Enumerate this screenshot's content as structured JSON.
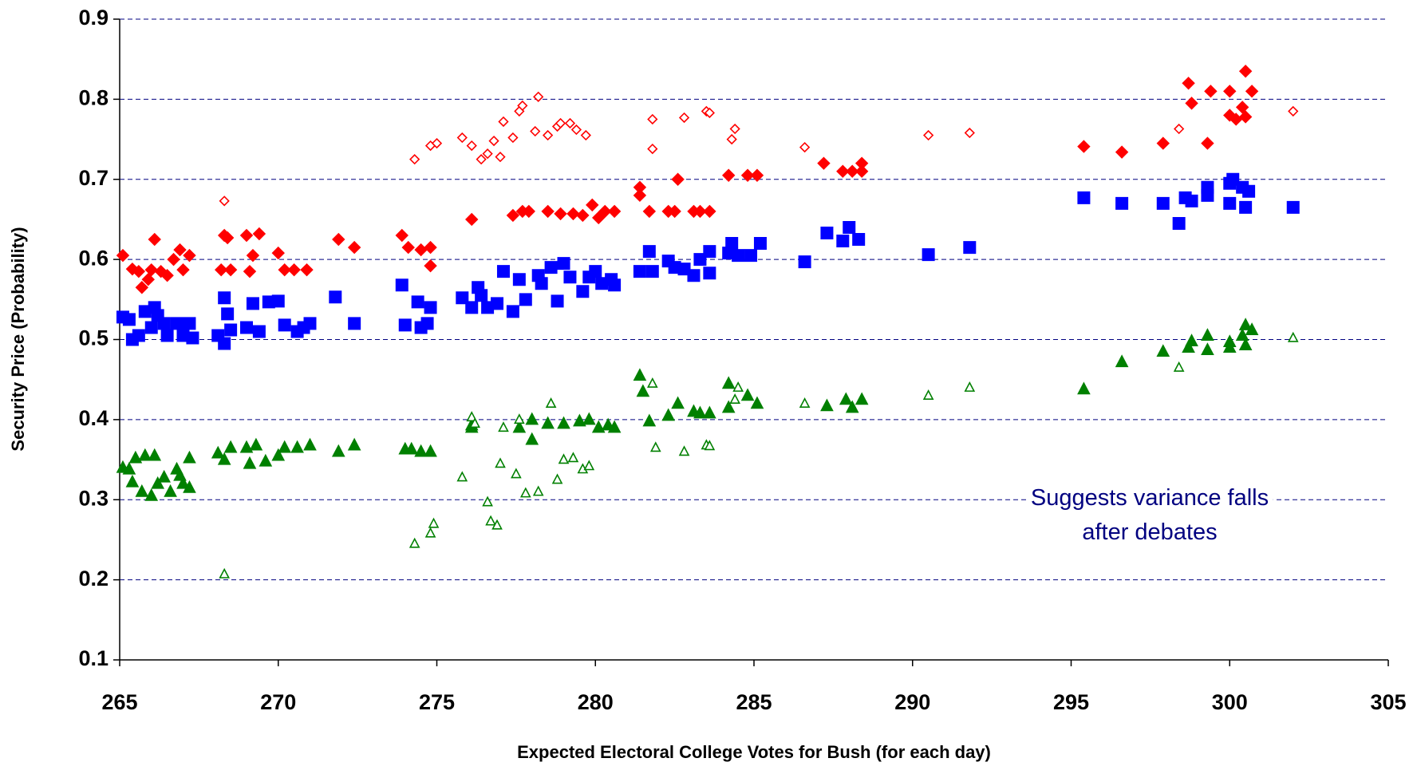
{
  "chart_data": {
    "type": "scatter",
    "x_label": "Expected Electoral College Votes for Bush (for each day)",
    "y_label": "Security Price (Probability)",
    "annotation": [
      "Suggests variance falls",
      "after debates"
    ],
    "xlim": [
      265,
      305
    ],
    "xticks": [
      265,
      270,
      275,
      280,
      285,
      290,
      295,
      300,
      305
    ],
    "ylim": [
      0.1,
      0.9
    ],
    "yticks": [
      0.1,
      0.2,
      0.3,
      0.4,
      0.5,
      0.6,
      0.7,
      0.8,
      0.9
    ],
    "grid": true,
    "series": [
      {
        "color": "#ff0000",
        "marker": "diamond",
        "filled": true,
        "x": [
          265.1,
          265.4,
          265.6,
          265.7,
          265.9,
          266.0,
          266.1,
          266.3,
          266.5,
          266.7,
          266.9,
          267.0,
          267.2,
          268.2,
          268.3,
          268.4,
          268.5,
          269.0,
          269.2,
          269.1,
          269.4,
          270.0,
          270.2,
          270.5,
          270.9,
          271.9,
          272.4,
          273.9,
          274.1,
          274.5,
          274.8,
          274.8,
          276.1,
          277.4,
          277.7,
          277.9,
          278.5,
          278.9,
          279.3,
          279.6,
          279.9,
          280.1,
          280.3,
          280.6,
          281.4,
          281.4,
          281.7,
          282.3,
          282.5,
          282.6,
          283.1,
          283.3,
          283.6,
          284.2,
          284.8,
          285.1,
          287.2,
          287.8,
          288.1,
          288.4,
          288.4,
          295.4,
          296.6,
          297.9,
          298.7,
          298.8,
          299.3,
          299.4,
          300.0,
          300.0,
          300.2,
          300.4,
          300.5,
          300.5,
          300.7
        ],
        "values": [
          0.605,
          0.588,
          0.585,
          0.565,
          0.575,
          0.587,
          0.625,
          0.585,
          0.58,
          0.6,
          0.612,
          0.587,
          0.605,
          0.587,
          0.63,
          0.627,
          0.587,
          0.63,
          0.605,
          0.585,
          0.632,
          0.608,
          0.587,
          0.587,
          0.587,
          0.625,
          0.615,
          0.63,
          0.615,
          0.612,
          0.615,
          0.592,
          0.65,
          0.655,
          0.66,
          0.66,
          0.66,
          0.657,
          0.657,
          0.655,
          0.668,
          0.652,
          0.66,
          0.66,
          0.69,
          0.68,
          0.66,
          0.66,
          0.66,
          0.7,
          0.66,
          0.66,
          0.66,
          0.705,
          0.705,
          0.705,
          0.72,
          0.71,
          0.71,
          0.72,
          0.71,
          0.741,
          0.734,
          0.745,
          0.82,
          0.795,
          0.745,
          0.81,
          0.81,
          0.78,
          0.775,
          0.79,
          0.835,
          0.778,
          0.81
        ]
      },
      {
        "color": "#ff0000",
        "marker": "diamond",
        "filled": false,
        "x": [
          268.3,
          274.3,
          274.8,
          275.0,
          275.8,
          276.1,
          276.4,
          276.6,
          276.8,
          277.0,
          277.1,
          277.4,
          277.6,
          277.7,
          278.1,
          278.2,
          278.5,
          278.8,
          278.9,
          279.2,
          279.4,
          279.7,
          281.8,
          281.8,
          282.8,
          283.5,
          283.6,
          284.3,
          284.4,
          286.6,
          290.5,
          291.8,
          298.4,
          302.0
        ],
        "values": [
          0.673,
          0.725,
          0.742,
          0.745,
          0.752,
          0.742,
          0.725,
          0.732,
          0.748,
          0.728,
          0.772,
          0.752,
          0.785,
          0.792,
          0.76,
          0.803,
          0.755,
          0.766,
          0.77,
          0.77,
          0.762,
          0.755,
          0.775,
          0.738,
          0.777,
          0.785,
          0.783,
          0.75,
          0.763,
          0.74,
          0.755,
          0.758,
          0.763,
          0.785
        ]
      },
      {
        "color": "#0000ff",
        "marker": "square",
        "filled": true,
        "x": [
          265.1,
          265.3,
          265.4,
          265.6,
          265.8,
          266.0,
          266.1,
          266.2,
          266.4,
          266.5,
          266.8,
          267.0,
          267.2,
          267.3,
          268.1,
          268.3,
          268.3,
          268.4,
          268.5,
          269.0,
          269.2,
          269.4,
          269.7,
          270.0,
          270.2,
          270.6,
          270.8,
          271.0,
          271.8,
          272.4,
          273.9,
          274.0,
          274.4,
          274.5,
          274.7,
          274.8,
          275.8,
          276.1,
          276.3,
          276.4,
          276.6,
          276.9,
          277.1,
          277.4,
          277.6,
          277.8,
          278.2,
          278.3,
          278.6,
          278.8,
          279.0,
          279.2,
          279.6,
          279.8,
          280.0,
          280.2,
          280.5,
          280.6,
          281.4,
          281.7,
          281.8,
          282.3,
          282.5,
          282.8,
          283.1,
          283.3,
          283.6,
          283.6,
          284.2,
          284.3,
          284.5,
          284.9,
          285.2,
          286.6,
          287.3,
          287.8,
          288.0,
          288.3,
          290.5,
          291.8,
          295.4,
          296.6,
          297.9,
          298.4,
          298.6,
          298.8,
          299.3,
          299.3,
          300.0,
          300.0,
          300.1,
          300.4,
          300.5,
          300.6,
          302.0
        ],
        "values": [
          0.528,
          0.525,
          0.5,
          0.505,
          0.535,
          0.515,
          0.54,
          0.53,
          0.52,
          0.505,
          0.52,
          0.505,
          0.52,
          0.502,
          0.505,
          0.552,
          0.495,
          0.532,
          0.512,
          0.515,
          0.545,
          0.51,
          0.547,
          0.548,
          0.518,
          0.51,
          0.515,
          0.52,
          0.553,
          0.52,
          0.568,
          0.518,
          0.547,
          0.515,
          0.52,
          0.54,
          0.552,
          0.54,
          0.565,
          0.555,
          0.54,
          0.545,
          0.585,
          0.535,
          0.575,
          0.55,
          0.58,
          0.57,
          0.59,
          0.548,
          0.595,
          0.578,
          0.56,
          0.578,
          0.585,
          0.57,
          0.575,
          0.568,
          0.585,
          0.61,
          0.585,
          0.598,
          0.59,
          0.588,
          0.58,
          0.6,
          0.61,
          0.583,
          0.608,
          0.62,
          0.605,
          0.605,
          0.62,
          0.597,
          0.633,
          0.623,
          0.64,
          0.625,
          0.606,
          0.615,
          0.677,
          0.67,
          0.67,
          0.645,
          0.677,
          0.673,
          0.69,
          0.68,
          0.67,
          0.695,
          0.7,
          0.69,
          0.665,
          0.685,
          0.665
        ]
      },
      {
        "color": "#008000",
        "marker": "triangle",
        "filled": true,
        "x": [
          265.1,
          265.3,
          265.4,
          265.5,
          265.7,
          265.8,
          266.0,
          266.1,
          266.2,
          266.4,
          266.6,
          266.8,
          266.9,
          267.0,
          267.2,
          267.2,
          268.1,
          268.3,
          268.5,
          269.0,
          269.1,
          269.3,
          269.6,
          270.0,
          270.2,
          270.6,
          271.0,
          271.9,
          272.4,
          274.0,
          274.2,
          274.5,
          274.8,
          276.1,
          276.1,
          277.6,
          278.0,
          278.0,
          278.5,
          279.0,
          279.5,
          279.8,
          280.1,
          280.4,
          280.6,
          281.4,
          281.5,
          281.7,
          282.3,
          282.6,
          283.1,
          283.3,
          283.6,
          284.2,
          284.2,
          284.8,
          285.1,
          287.3,
          287.9,
          288.1,
          288.4,
          295.4,
          296.6,
          297.9,
          298.7,
          298.8,
          299.3,
          299.3,
          300.0,
          300.0,
          300.4,
          300.5,
          300.5,
          300.7
        ],
        "values": [
          0.34,
          0.338,
          0.322,
          0.352,
          0.31,
          0.355,
          0.305,
          0.355,
          0.32,
          0.328,
          0.31,
          0.338,
          0.33,
          0.32,
          0.315,
          0.352,
          0.358,
          0.35,
          0.365,
          0.365,
          0.345,
          0.368,
          0.348,
          0.355,
          0.365,
          0.365,
          0.368,
          0.36,
          0.368,
          0.363,
          0.363,
          0.36,
          0.36,
          0.39,
          0.393,
          0.39,
          0.4,
          0.375,
          0.395,
          0.395,
          0.398,
          0.4,
          0.39,
          0.393,
          0.39,
          0.455,
          0.435,
          0.398,
          0.405,
          0.42,
          0.41,
          0.408,
          0.408,
          0.415,
          0.445,
          0.43,
          0.42,
          0.417,
          0.425,
          0.415,
          0.425,
          0.438,
          0.472,
          0.485,
          0.49,
          0.498,
          0.505,
          0.487,
          0.497,
          0.49,
          0.505,
          0.518,
          0.493,
          0.512
        ]
      },
      {
        "color": "#008000",
        "marker": "triangle",
        "filled": false,
        "x": [
          268.3,
          274.3,
          274.8,
          274.9,
          275.8,
          276.1,
          276.2,
          276.6,
          276.7,
          276.9,
          277.0,
          277.1,
          277.5,
          277.6,
          277.8,
          278.2,
          278.6,
          278.8,
          279.0,
          279.3,
          279.6,
          279.8,
          281.8,
          281.9,
          282.8,
          283.5,
          283.6,
          284.4,
          284.5,
          286.6,
          290.5,
          291.8,
          298.4,
          302.0
        ],
        "values": [
          0.207,
          0.245,
          0.258,
          0.27,
          0.328,
          0.403,
          0.395,
          0.297,
          0.273,
          0.268,
          0.345,
          0.39,
          0.332,
          0.4,
          0.308,
          0.31,
          0.42,
          0.325,
          0.35,
          0.352,
          0.338,
          0.342,
          0.445,
          0.365,
          0.36,
          0.368,
          0.367,
          0.425,
          0.44,
          0.42,
          0.43,
          0.44,
          0.465,
          0.502
        ]
      }
    ]
  }
}
